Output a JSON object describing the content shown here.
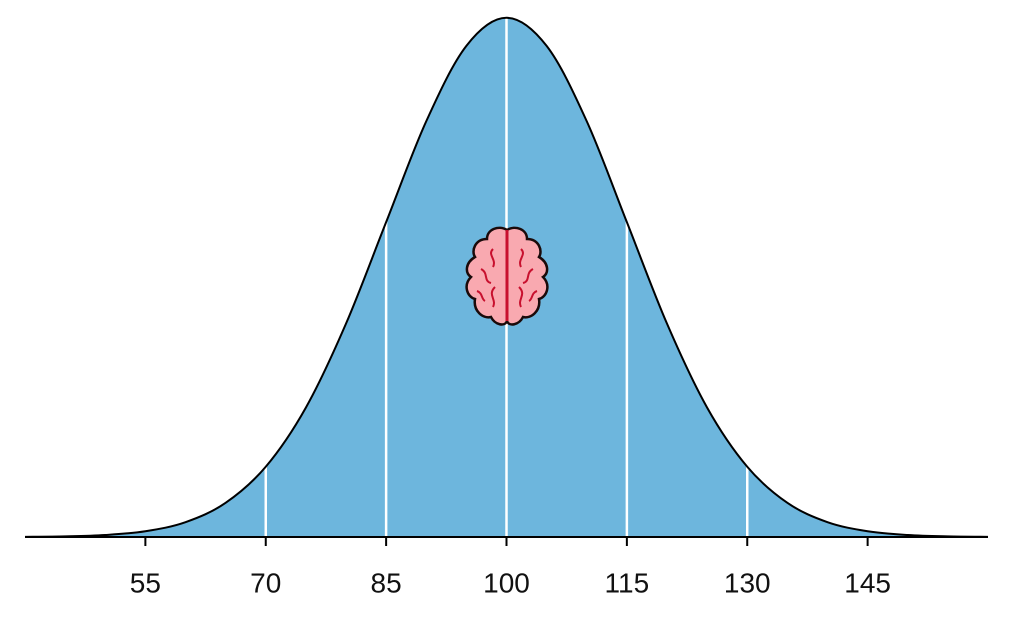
{
  "chart_data": {
    "type": "area",
    "x": [
      40,
      45,
      50,
      55,
      60,
      65,
      70,
      75,
      80,
      85,
      90,
      95,
      100,
      105,
      110,
      115,
      120,
      125,
      130,
      135,
      140,
      145,
      150,
      155,
      160
    ],
    "values": [
      8.9e-06,
      3.2e-05,
      0.000103,
      0.000295,
      0.00076,
      0.00175,
      0.0036,
      0.00663,
      0.01093,
      0.01613,
      0.0213,
      0.02516,
      0.0266,
      0.02516,
      0.0213,
      0.01613,
      0.01093,
      0.00663,
      0.0036,
      0.00175,
      0.00076,
      0.000295,
      0.000103,
      3.2e-05,
      8.9e-06
    ],
    "color": "#6db6dd",
    "dividers": [
      70,
      85,
      100,
      115,
      130
    ],
    "xlim": [
      40,
      160
    ],
    "ylim": [
      0,
      0.027
    ],
    "xticks": [
      55,
      70,
      85,
      100,
      115,
      130,
      145
    ]
  }
}
